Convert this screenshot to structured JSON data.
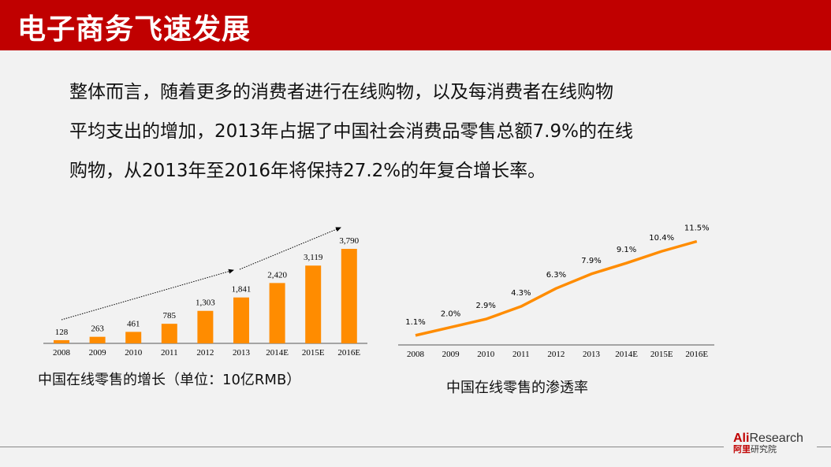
{
  "title": "电子商务飞速发展",
  "paragraph": [
    "整体而言，随着更多的消费者进行在线购物，以及每消费者在线购物",
    "平均支出的增加，2013年占据了中国社会消费品零售总额7.9%的在线",
    "购物，从2013年至2016年将保持27.2%的年复合增长率。"
  ],
  "logo": {
    "brand_a": "Ali",
    "brand_b": "Research",
    "cn_a": "阿里",
    "cn_b": "研究院"
  },
  "colors": {
    "accent": "#c00000",
    "series": "#ff8c00"
  },
  "chart_data": [
    {
      "type": "bar",
      "title": "中国在线零售的增长（单位：10亿RMB）",
      "categories": [
        "2008",
        "2009",
        "2010",
        "2011",
        "2012",
        "2013",
        "2014E",
        "2015E",
        "2016E"
      ],
      "values": [
        128,
        263,
        461,
        785,
        1303,
        1841,
        2420,
        3119,
        3790
      ],
      "labels": [
        "128",
        "263",
        "461",
        "785",
        "1,303",
        "1,841",
        "2,420",
        "3,119",
        "3,790"
      ],
      "ylim": [
        0,
        3790
      ]
    },
    {
      "type": "line",
      "title": "中国在线零售的渗透率",
      "categories": [
        "2008",
        "2009",
        "2010",
        "2011",
        "2012",
        "2013",
        "2014E",
        "2015E",
        "2016E"
      ],
      "values": [
        1.1,
        2.0,
        2.9,
        4.3,
        6.3,
        7.9,
        9.1,
        10.4,
        11.5
      ],
      "labels": [
        "1.1%",
        "2.0%",
        "2.9%",
        "4.3%",
        "6.3%",
        "7.9%",
        "9.1%",
        "10.4%",
        "11.5%"
      ],
      "ylim": [
        0,
        11.5
      ]
    }
  ]
}
